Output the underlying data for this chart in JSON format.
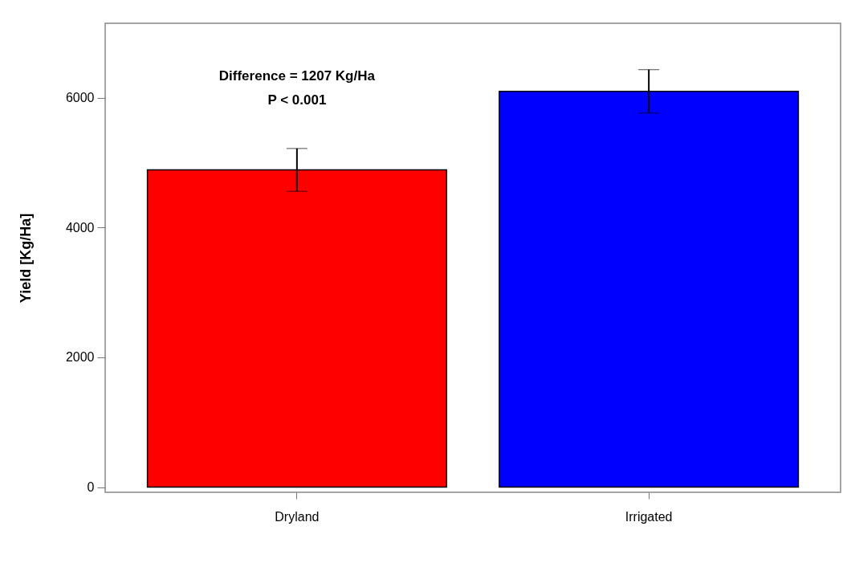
{
  "chart_data": {
    "type": "bar",
    "ylabel": "Yield [Kg/Ha]",
    "categories": [
      "Dryland",
      "Irrigated"
    ],
    "values": [
      4890,
      6100
    ],
    "colors": [
      "#ff0000",
      "#0000ff"
    ],
    "errors": [
      330,
      335
    ],
    "ylim": [
      -80,
      7150
    ],
    "yticks": [
      0,
      2000,
      4000,
      6000
    ],
    "grid": false,
    "annotations": [
      "Difference = 1207 Kg/Ha",
      "P < 0.001"
    ]
  }
}
